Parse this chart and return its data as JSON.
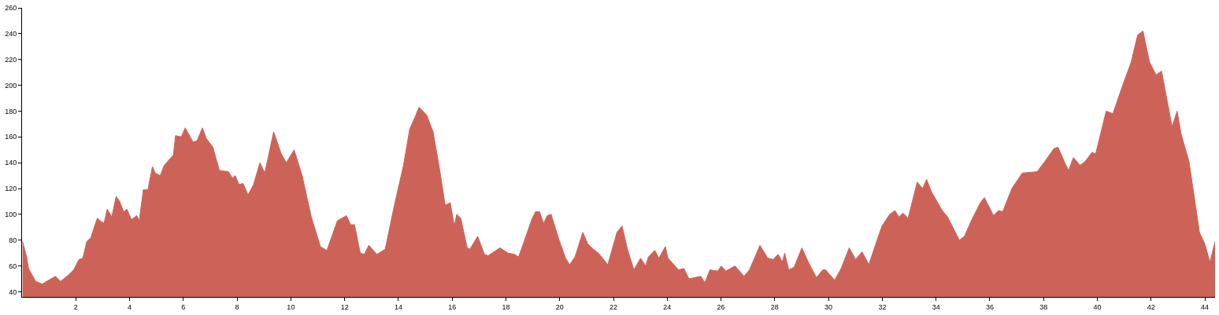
{
  "chart_data": {
    "type": "area",
    "color": "#cd6358",
    "xlim": [
      0,
      44.38
    ],
    "ylim": [
      36,
      260
    ],
    "xticks": [
      2,
      4,
      6,
      8,
      10,
      12,
      14,
      16,
      18,
      20,
      22,
      24,
      26,
      28,
      30,
      32,
      34,
      36,
      38,
      40,
      42,
      44
    ],
    "yticks": [
      40,
      60,
      80,
      100,
      120,
      140,
      160,
      180,
      200,
      220,
      240,
      260
    ],
    "x": [
      0.02,
      0.17,
      0.24,
      0.51,
      0.75,
      1.24,
      1.43,
      1.73,
      1.92,
      2.12,
      2.26,
      2.41,
      2.56,
      2.7,
      2.8,
      2.9,
      3.05,
      3.17,
      3.34,
      3.5,
      3.63,
      3.78,
      3.9,
      4.07,
      4.27,
      4.36,
      4.51,
      4.68,
      4.85,
      4.95,
      5.14,
      5.29,
      5.63,
      5.71,
      5.92,
      6.07,
      6.36,
      6.51,
      6.71,
      6.85,
      7.1,
      7.34,
      7.68,
      7.83,
      7.93,
      8.07,
      8.22,
      8.41,
      8.61,
      8.85,
      9.03,
      9.36,
      9.64,
      9.83,
      10.12,
      10.42,
      10.76,
      11.1,
      11.34,
      11.73,
      12.07,
      12.22,
      12.37,
      12.58,
      12.73,
      12.9,
      13.2,
      13.51,
      13.64,
      13.85,
      14.19,
      14.42,
      14.61,
      14.77,
      15.05,
      15.29,
      15.54,
      15.74,
      15.93,
      16.08,
      16.17,
      16.32,
      16.56,
      16.66,
      16.95,
      17.2,
      17.34,
      17.78,
      18.08,
      18.32,
      18.47,
      18.61,
      18.96,
      19.1,
      19.25,
      19.4,
      19.54,
      19.68,
      19.98,
      20.22,
      20.37,
      20.57,
      20.86,
      21.05,
      21.25,
      21.44,
      21.79,
      22.13,
      22.32,
      22.52,
      22.76,
      23.01,
      23.2,
      23.3,
      23.54,
      23.69,
      23.93,
      24.03,
      24.42,
      24.62,
      24.81,
      25.25,
      25.4,
      25.59,
      25.88,
      26.01,
      26.18,
      26.52,
      26.86,
      27.06,
      27.45,
      27.74,
      27.94,
      28.13,
      28.28,
      28.37,
      28.52,
      28.72,
      29.01,
      29.25,
      29.55,
      29.79,
      29.89,
      30.23,
      30.47,
      30.77,
      31.01,
      31.25,
      31.5,
      31.79,
      31.99,
      32.28,
      32.47,
      32.62,
      32.77,
      32.96,
      33.3,
      33.5,
      33.65,
      33.84,
      34.23,
      34.43,
      34.87,
      35.06,
      35.31,
      35.65,
      35.8,
      36.14,
      36.33,
      36.48,
      36.82,
      37.21,
      37.76,
      38.05,
      38.39,
      38.54,
      38.79,
      38.93,
      39.11,
      39.36,
      39.55,
      39.8,
      39.94,
      40.33,
      40.58,
      40.96,
      41.26,
      41.5,
      41.7,
      41.94,
      42.19,
      42.39,
      42.78,
      42.97,
      43.12,
      43.41,
      43.8,
      44.0,
      44.19,
      44.38
    ],
    "values": [
      79,
      67,
      58,
      48,
      46,
      52,
      48,
      53,
      57,
      65,
      66,
      79,
      82,
      91,
      97,
      95,
      93,
      104,
      98,
      114,
      110,
      102,
      104,
      96,
      99,
      95,
      119,
      119,
      137,
      132,
      130,
      138,
      146,
      161,
      160,
      167,
      156,
      157,
      167,
      159,
      152,
      134,
      133,
      128,
      130,
      123,
      124,
      115,
      123,
      140,
      132,
      164,
      147,
      140,
      150,
      130,
      98,
      75,
      72,
      95,
      99,
      92,
      92,
      70,
      69,
      76,
      69,
      73,
      86,
      107,
      138,
      166,
      175,
      183,
      177,
      164,
      134,
      107,
      109,
      91,
      100,
      97,
      74,
      73,
      83,
      69,
      68,
      74,
      70,
      69,
      67,
      75,
      96,
      102,
      102,
      93,
      99,
      100,
      80,
      66,
      61,
      67,
      86,
      77,
      73,
      70,
      61,
      86,
      91,
      73,
      57,
      66,
      60,
      67,
      72,
      66,
      75,
      66,
      57,
      58,
      50,
      52,
      47,
      57,
      56,
      60,
      56,
      60,
      52,
      57,
      76,
      66,
      65,
      69,
      63,
      70,
      57,
      59,
      74,
      63,
      51,
      57,
      57,
      49,
      58,
      74,
      65,
      71,
      61,
      79,
      91,
      100,
      103,
      98,
      101,
      97,
      125,
      120,
      127,
      117,
      103,
      98,
      80,
      83,
      95,
      109,
      113,
      99,
      103,
      102,
      120,
      132,
      133,
      141,
      151,
      152,
      140,
      134,
      144,
      138,
      141,
      148,
      147,
      180,
      178,
      201,
      218,
      239,
      242,
      218,
      208,
      211,
      168,
      180,
      162,
      141,
      86,
      77,
      63,
      79
    ]
  }
}
